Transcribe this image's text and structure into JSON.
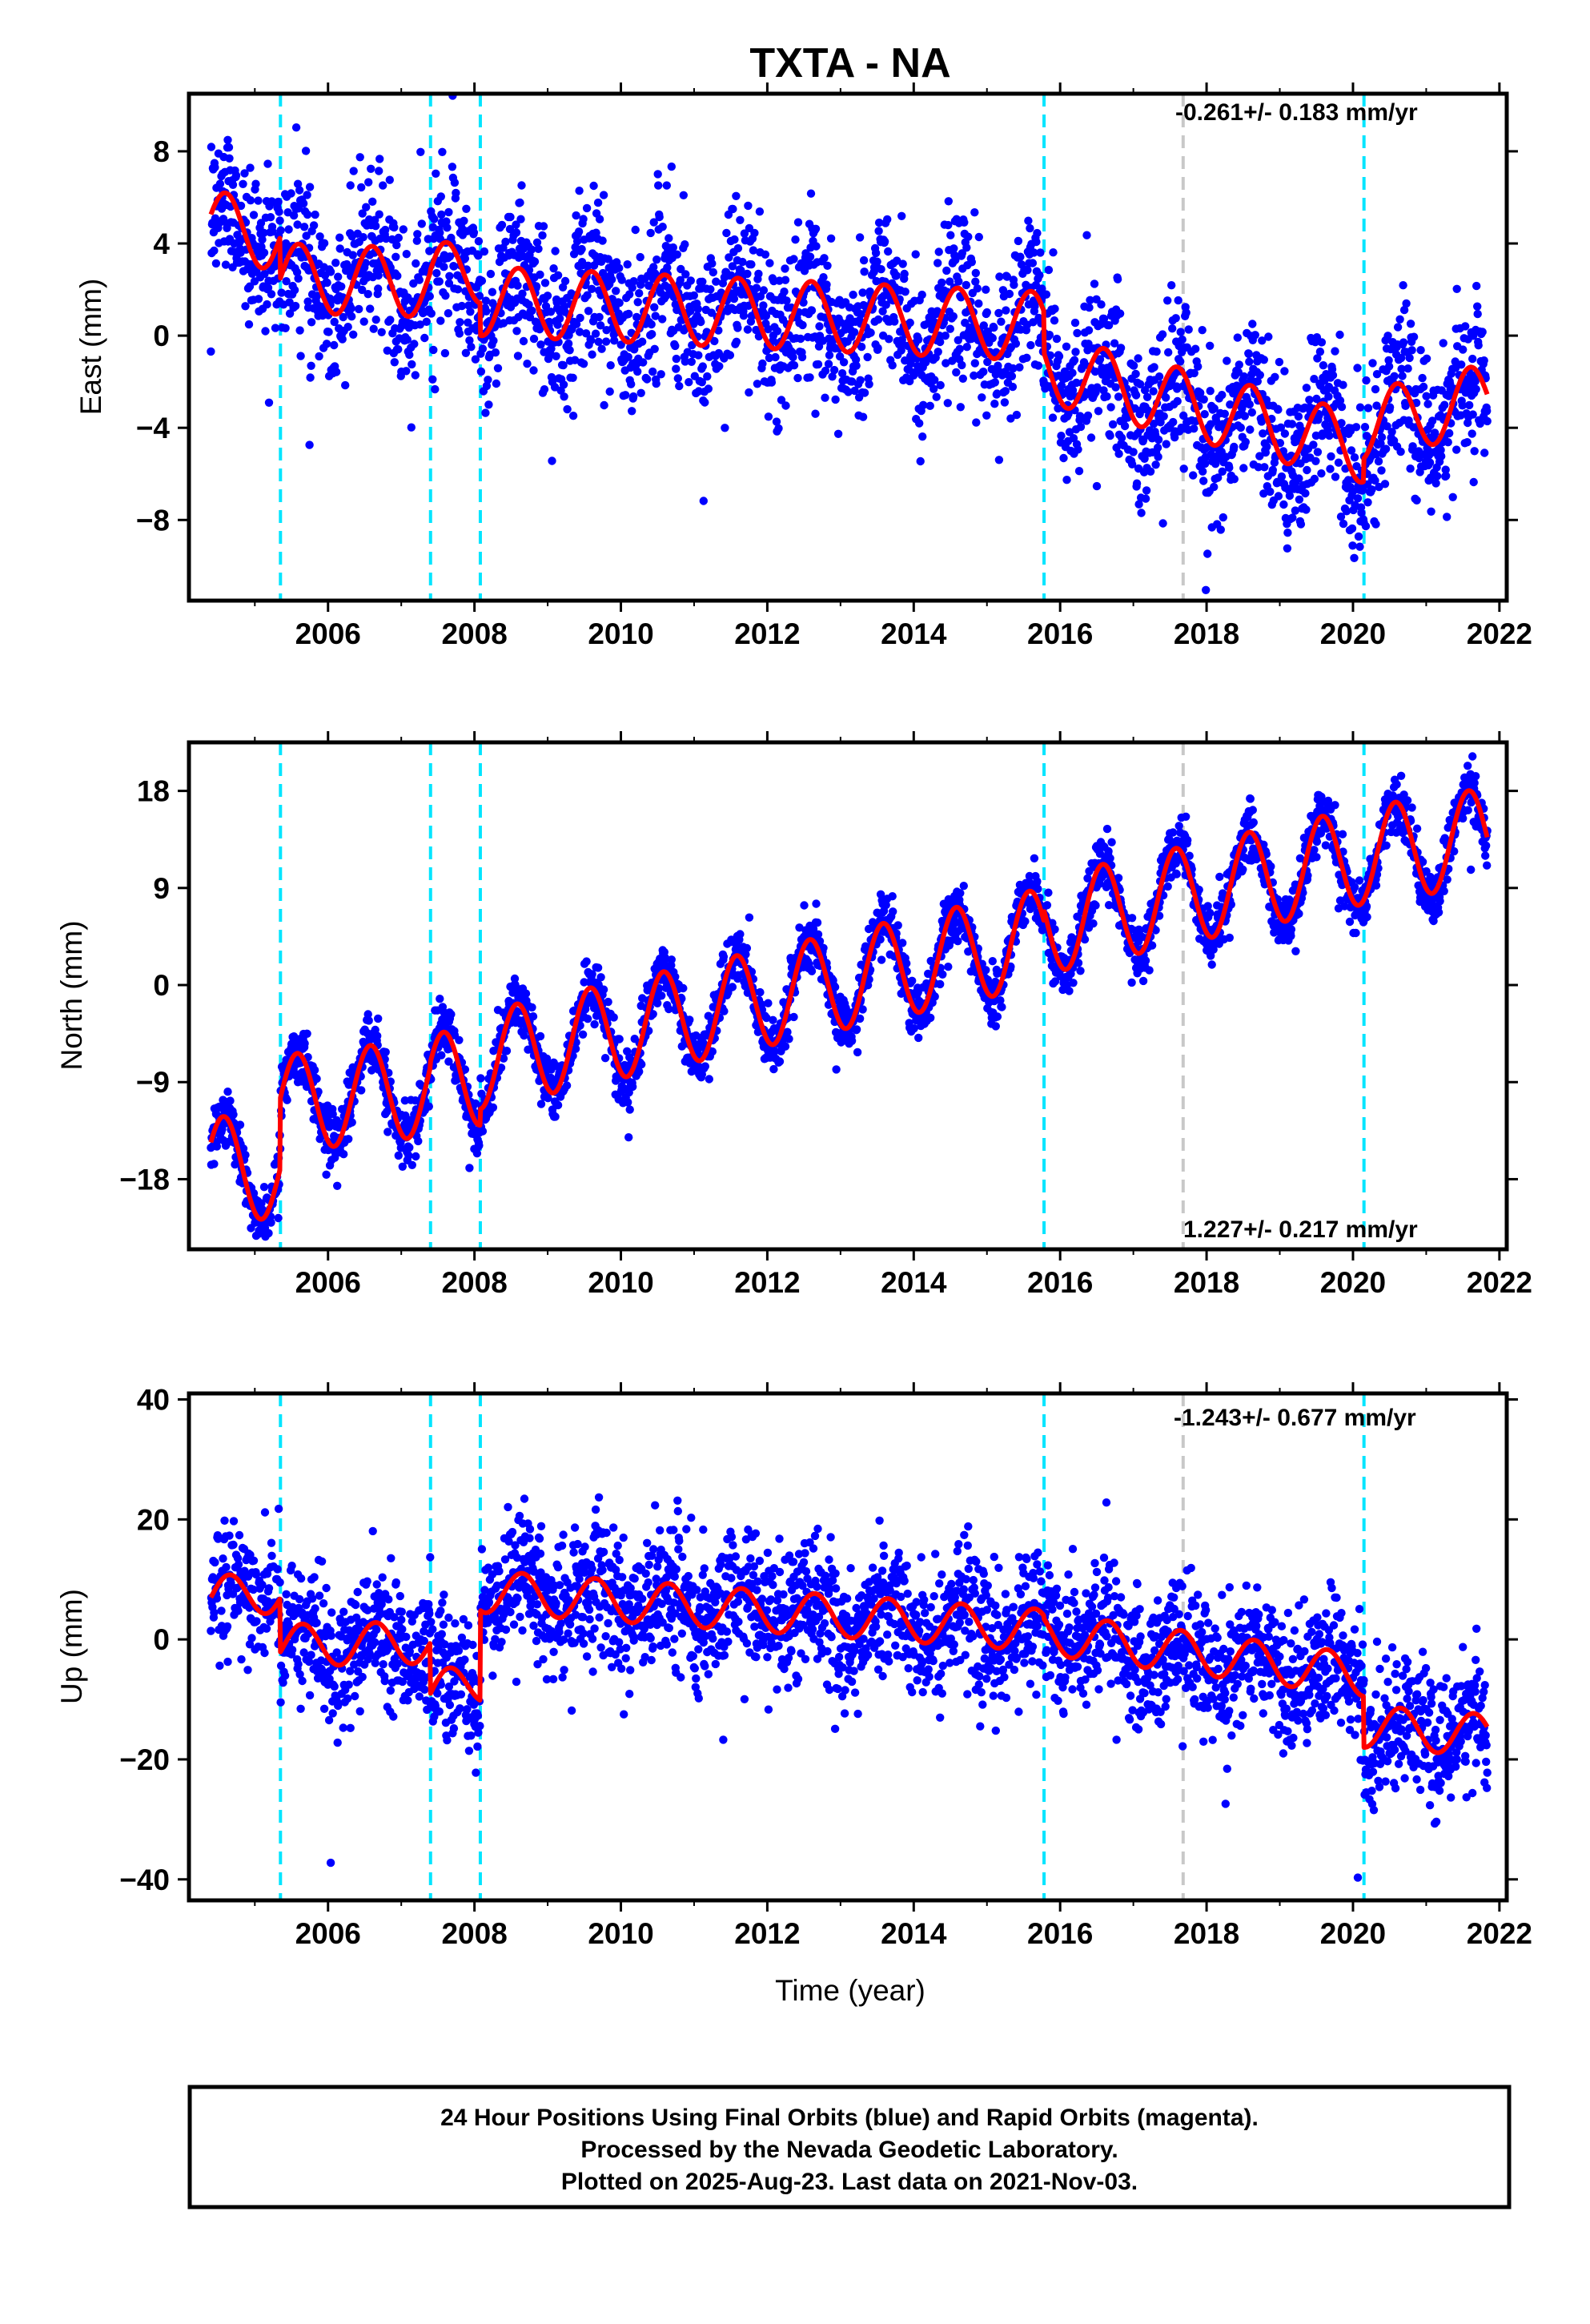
{
  "title": "TXTA - NA",
  "xlabel": "Time (year)",
  "x_ticks": [
    "2006",
    "2008",
    "2010",
    "2012",
    "2014",
    "2016",
    "2018",
    "2020",
    "2022"
  ],
  "colors": {
    "final_orbits": "#0000ff",
    "model_fit": "#ff0000",
    "equipment_change": "#00e5ff",
    "other_event": "#c8c8c8",
    "frame": "#000000"
  },
  "footer": {
    "line1": "24 Hour Positions Using Final Orbits (blue) and Rapid Orbits (magenta).",
    "line2": "Processed by the Nevada Geodetic Laboratory.",
    "line3": "Plotted on 2025-Aug-23. Last data on 2021-Nov-03."
  },
  "chart_data": [
    {
      "type": "scatter",
      "component": "east",
      "ylabel": "East (mm)",
      "rate_label": "-0.261+/- 0.183 mm/yr",
      "xlim": [
        2004.1,
        2022.1
      ],
      "ylim": [
        -11.5,
        10.5
      ],
      "y_ticks": [
        8,
        4,
        0,
        -4,
        -8
      ],
      "y_tick_labels": [
        "8",
        "4",
        "0",
        "−4",
        "−8"
      ],
      "data_span": [
        2004.4,
        2021.84
      ],
      "noise_sd": 1.7,
      "equipment_changes": [
        2005.35,
        2007.4,
        2008.08,
        2015.78,
        2020.15
      ],
      "other_events": [
        2017.68
      ],
      "model_fit": {
        "breaks": [
          2005.35,
          2007.4,
          2008.08,
          2015.78,
          2020.15
        ],
        "segment_starts": [
          [
            2004.4,
            4.8
          ],
          [
            2005.35,
            2.5
          ],
          [
            2007.4,
            2.4
          ],
          [
            2008.08,
            1.5
          ],
          [
            2015.78,
            -1.4
          ],
          [
            2020.15,
            -3.9
          ]
        ],
        "segment_ends": [
          [
            2005.35,
            4.3
          ],
          [
            2007.4,
            2.3
          ],
          [
            2008.08,
            2.9
          ],
          [
            2015.78,
            0.4
          ],
          [
            2020.15,
            -4.9
          ],
          [
            2021.84,
            -2.7
          ]
        ],
        "annual_amplitude": 1.5,
        "peak_phase": 0.6
      }
    },
    {
      "type": "scatter",
      "component": "north",
      "ylabel": "North (mm)",
      "rate_label": "1.227+/- 0.217 mm/yr",
      "xlim": [
        2004.1,
        2022.1
      ],
      "ylim": [
        -24.5,
        22.5
      ],
      "y_ticks": [
        18,
        9,
        0,
        -9,
        -18
      ],
      "y_tick_labels": [
        "18",
        "9",
        "0",
        "−9",
        "−18"
      ],
      "data_span": [
        2004.4,
        2021.84
      ],
      "noise_sd": 1.3,
      "equipment_changes": [
        2005.35,
        2007.4,
        2008.08,
        2015.78,
        2020.15
      ],
      "other_events": [
        2017.68
      ],
      "model_fit": {
        "breaks": [
          2005.35,
          2007.4,
          2008.08,
          2015.78,
          2020.15
        ],
        "segment_starts": [
          [
            2004.4,
            -16.5
          ],
          [
            2005.35,
            -11.0
          ],
          [
            2007.4,
            -9.0
          ],
          [
            2008.08,
            -7.0
          ],
          [
            2015.78,
            5.5
          ],
          [
            2020.15,
            12.0
          ]
        ],
        "segment_ends": [
          [
            2005.35,
            -17.5
          ],
          [
            2007.4,
            -9.5
          ],
          [
            2008.08,
            -8.5
          ],
          [
            2015.78,
            4.5
          ],
          [
            2020.15,
            12.0
          ],
          [
            2021.84,
            13.8
          ]
        ],
        "annual_amplitude": 4.5,
        "peak_phase": 0.58
      }
    },
    {
      "type": "scatter",
      "component": "up",
      "ylabel": "Up (mm)",
      "rate_label": "-1.243+/- 0.677 mm/yr",
      "xlim": [
        2004.1,
        2022.1
      ],
      "ylim": [
        -43.5,
        41
      ],
      "y_ticks": [
        40,
        20,
        0,
        -20,
        -40
      ],
      "y_tick_labels": [
        "40",
        "20",
        "0",
        "−20",
        "−40"
      ],
      "data_span": [
        2004.4,
        2021.84
      ],
      "noise_sd": 5.5,
      "equipment_changes": [
        2005.35,
        2007.4,
        2008.08,
        2015.78,
        2020.15
      ],
      "other_events": [
        2017.68
      ],
      "model_fit": {
        "breaks": [
          2005.35,
          2007.4,
          2008.08,
          2015.78,
          2020.15
        ],
        "segment_starts": [
          [
            2004.4,
            7.0
          ],
          [
            2005.35,
            -1.0
          ],
          [
            2007.4,
            -9.0
          ],
          [
            2008.08,
            8.0
          ],
          [
            2015.78,
            1.0
          ],
          [
            2020.15,
            -14.5
          ]
        ],
        "segment_ends": [
          [
            2005.35,
            8.0
          ],
          [
            2007.4,
            -0.5
          ],
          [
            2008.08,
            -7.0
          ],
          [
            2015.78,
            1.5
          ],
          [
            2020.15,
            -6.0
          ],
          [
            2021.84,
            -16.0
          ]
        ],
        "annual_amplitude": 3.5,
        "peak_phase": 0.65
      }
    }
  ]
}
